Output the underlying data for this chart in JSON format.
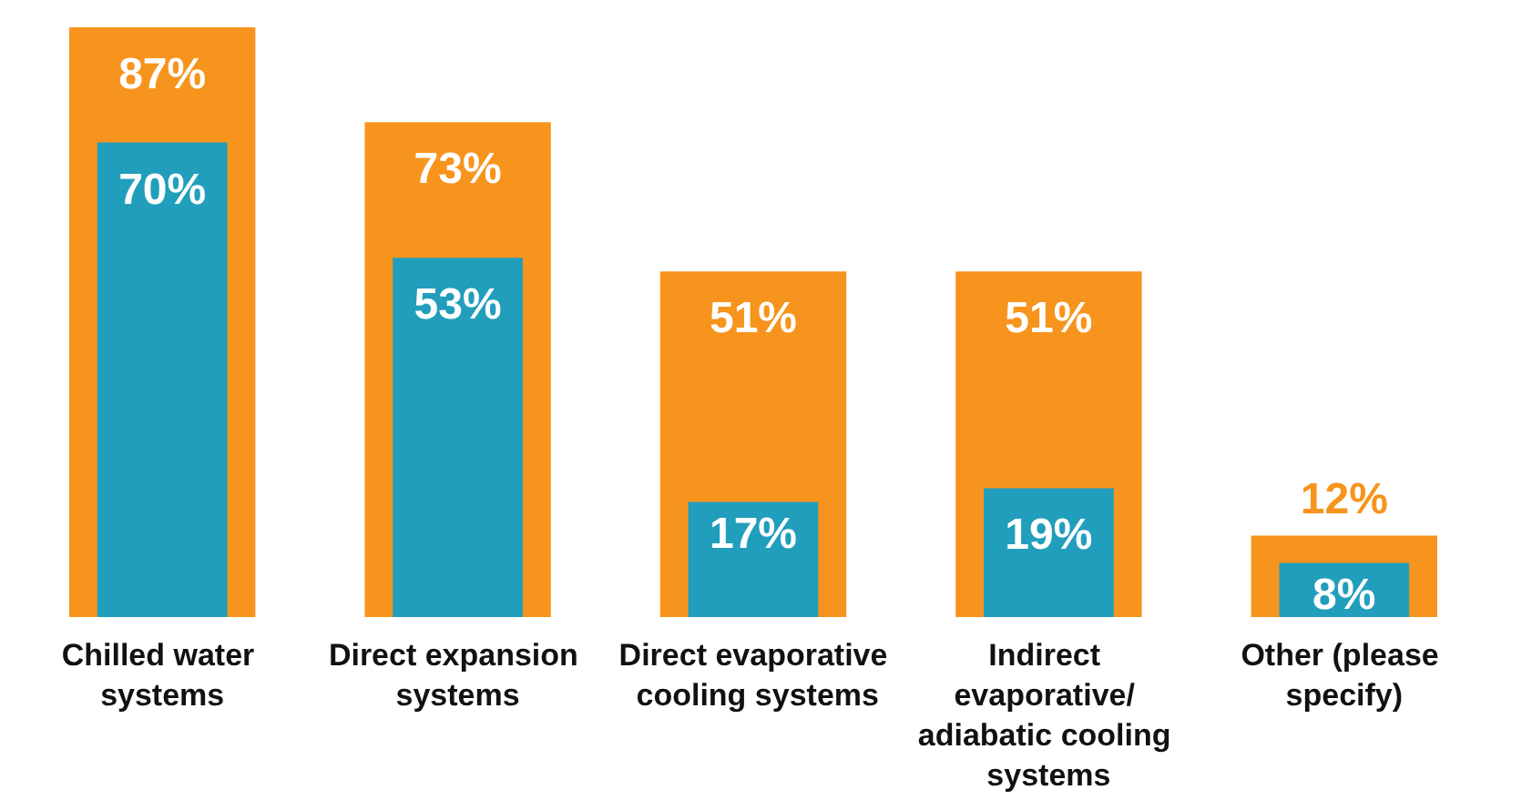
{
  "chart_data": {
    "type": "bar",
    "categories": [
      "Chilled water systems",
      "Direct expansion systems",
      "Direct evaporative cooling systems",
      "Indirect evaporative/ adiabatic cooling systems",
      "Other (please specify)"
    ],
    "series": [
      {
        "color": "#f7941d",
        "values": [
          87,
          73,
          51,
          51,
          12
        ],
        "value_labels": [
          "87%",
          "73%",
          "51%",
          "51%",
          "12%"
        ]
      },
      {
        "color": "#219ebc",
        "values": [
          70,
          53,
          17,
          19,
          8
        ],
        "value_labels": [
          "70%",
          "53%",
          "17%",
          "19%",
          "8%"
        ]
      }
    ]
  }
}
